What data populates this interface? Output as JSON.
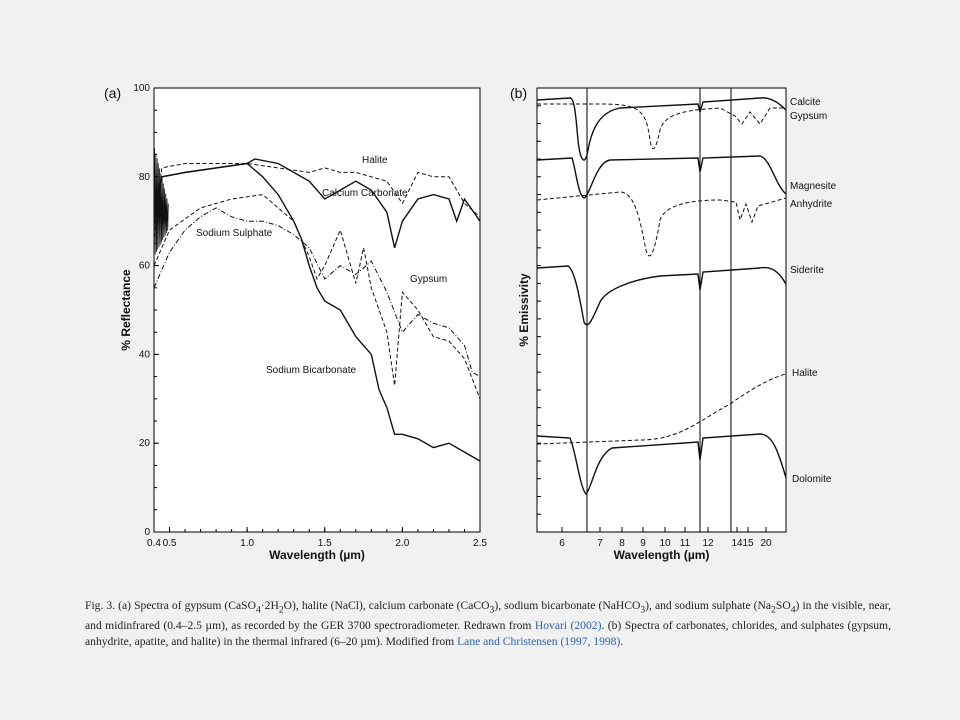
{
  "chart_data": [
    {
      "panel_label": "(a)",
      "type": "line",
      "xlabel": "Wavelength (µm)",
      "ylabel": "% Reflectance",
      "xlim": [
        0.4,
        2.5
      ],
      "ylim": [
        0,
        100
      ],
      "x_ticks": [
        "0.4",
        "0.5",
        "1.0",
        "1.5",
        "2.0",
        "2.5"
      ],
      "y_ticks": [
        "0",
        "20",
        "40",
        "60",
        "80",
        "100"
      ],
      "series": [
        {
          "name": "Halite",
          "style": "dashed",
          "x": [
            0.4,
            0.45,
            0.6,
            0.8,
            1.0,
            1.2,
            1.4,
            1.5,
            1.6,
            1.7,
            1.8,
            1.9,
            2.0,
            2.1,
            2.2,
            2.3,
            2.4,
            2.5
          ],
          "y": [
            65,
            82,
            83,
            83,
            83,
            82,
            81,
            82,
            81,
            81,
            80,
            79,
            74,
            81,
            80,
            80,
            74,
            71
          ]
        },
        {
          "name": "Calcium Carbonate",
          "style": "solid",
          "x": [
            0.4,
            0.45,
            0.6,
            0.8,
            1.0,
            1.05,
            1.2,
            1.4,
            1.5,
            1.6,
            1.7,
            1.8,
            1.9,
            1.95,
            2.0,
            2.1,
            2.2,
            2.3,
            2.35,
            2.4,
            2.5
          ],
          "y": [
            70,
            80,
            81,
            82,
            83,
            84,
            83,
            79,
            75,
            77,
            79,
            77,
            72,
            64,
            70,
            75,
            76,
            75,
            70,
            75,
            70
          ]
        },
        {
          "name": "Sodium Sulphate",
          "style": "dash-dot",
          "x": [
            0.4,
            0.5,
            0.6,
            0.7,
            0.8,
            0.9,
            1.0,
            1.1,
            1.2,
            1.3,
            1.4,
            1.5,
            1.6,
            1.7,
            1.8,
            1.9,
            2.0,
            2.1,
            2.2,
            2.3,
            2.4,
            2.45,
            2.5
          ],
          "y": [
            55,
            63,
            68,
            71,
            73,
            71,
            70,
            70,
            69,
            67,
            64,
            57,
            60,
            58,
            61,
            54,
            45,
            49,
            47,
            46,
            42,
            36,
            35
          ]
        },
        {
          "name": "Gypsum",
          "style": "dashed",
          "x": [
            0.4,
            0.5,
            0.7,
            0.9,
            1.1,
            1.3,
            1.4,
            1.45,
            1.5,
            1.6,
            1.7,
            1.75,
            1.8,
            1.9,
            1.95,
            2.0,
            2.1,
            2.2,
            2.3,
            2.4,
            2.5
          ],
          "y": [
            60,
            68,
            73,
            75,
            76,
            70,
            62,
            57,
            60,
            68,
            56,
            64,
            55,
            45,
            33,
            54,
            50,
            44,
            43,
            39,
            30
          ]
        },
        {
          "name": "Sodium Bicarbonate",
          "style": "solid",
          "x": [
            0.4,
            0.45,
            0.6,
            0.8,
            1.0,
            1.1,
            1.2,
            1.3,
            1.35,
            1.4,
            1.45,
            1.5,
            1.6,
            1.7,
            1.8,
            1.85,
            1.9,
            1.95,
            2.0,
            2.1,
            2.2,
            2.3,
            2.4,
            2.5
          ],
          "y": [
            74,
            80,
            81,
            82,
            83,
            80,
            76,
            70,
            66,
            60,
            55,
            52,
            50,
            44,
            40,
            32,
            28,
            22,
            22,
            21,
            19,
            20,
            18,
            16
          ]
        }
      ]
    },
    {
      "panel_label": "(b)",
      "type": "line",
      "xlabel": "Wavelength (µm)",
      "ylabel": "% Emissivity",
      "x_ticks": [
        "6",
        "7",
        "8",
        "9",
        "10",
        "11",
        "12",
        "14",
        "15",
        "20"
      ],
      "vertical_reference_lines_um": [
        6.5,
        11.3,
        13.9
      ],
      "series": [
        {
          "name": "Calcite",
          "style": "solid"
        },
        {
          "name": "Gypsum",
          "style": "dashed"
        },
        {
          "name": "Magnesite",
          "style": "solid"
        },
        {
          "name": "Anhydrite",
          "style": "dashed"
        },
        {
          "name": "Siderite",
          "style": "solid"
        },
        {
          "name": "Halite",
          "style": "dashed"
        },
        {
          "name": "Dolomite",
          "style": "solid"
        }
      ]
    }
  ],
  "caption": {
    "fig_label": "Fig. 3.",
    "text_a_start": " (a) Spectra of gypsum (CaSO",
    "sub_gyp_a": "4",
    "text_a_2": "·2H",
    "sub_gyp_b": "2",
    "text_a_3": "O), halite (NaCl), calcium carbonate (CaCO",
    "sub_caco3": "3",
    "text_a_4": "), sodium bicarbonate (NaHCO",
    "sub_nahco3": "3",
    "text_a_5": "), and sodium sulphate (Na",
    "sub_na2": "2",
    "text_a_6": "SO",
    "sub_so4": "4",
    "text_a_7": ") in the visible, near, and midinfrared (0.4–2.5 µm), as recorded by the GER 3700 spectroradiometer. Redrawn from ",
    "ref1": "Hovari (2002)",
    "text_b": ". (b) Spectra of carbonates, chlorides, and sulphates (gypsum, anhydrite, apatite, and halite) in the thermal infrared (6–20 µm). Modified from ",
    "ref2": "Lane and Christensen (1997, 1998)",
    "text_end": "."
  }
}
